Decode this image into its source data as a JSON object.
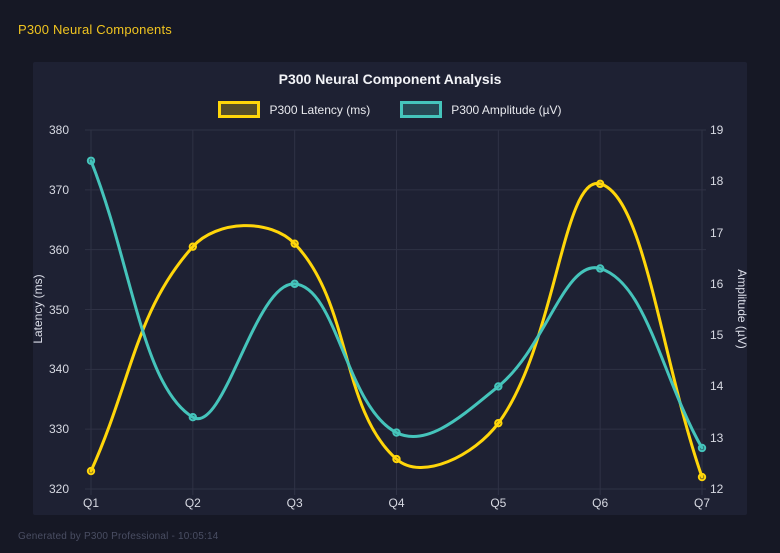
{
  "header": {
    "title": "P300 Neural Components",
    "title_color": "#f0c420"
  },
  "footer": {
    "text": "Generated by P300 Professional - 10:05:14"
  },
  "colors": {
    "page_background": "#161825",
    "panel_background": "#1e2133",
    "grid_line": "#2f3245",
    "latency_series": "#ffd60a",
    "amplitude_series": "#45c4bb",
    "title_text": "#f2f3f7",
    "tick_text": "#d7d9e2"
  },
  "chart_data": {
    "type": "line",
    "title": "P300 Neural Component Analysis",
    "categories": [
      "Q1",
      "Q2",
      "Q3",
      "Q4",
      "Q5",
      "Q6",
      "Q7"
    ],
    "series": [
      {
        "name": "P300 Latency (ms)",
        "axis": "left",
        "color": "#ffd60a",
        "values": [
          323,
          360.5,
          361,
          325,
          331,
          371,
          322
        ]
      },
      {
        "name": "P300 Amplitude (µV)",
        "axis": "right",
        "color": "#45c4bb",
        "values": [
          18.4,
          13.4,
          16.0,
          13.1,
          14.0,
          16.3,
          12.8
        ]
      }
    ],
    "left_axis": {
      "label": "Latency (ms)",
      "min": 320,
      "max": 380,
      "ticks": [
        380,
        370,
        360,
        350,
        340,
        330,
        320
      ]
    },
    "right_axis": {
      "label": "Amplitude (µV)",
      "min": 12,
      "max": 19,
      "ticks": [
        19,
        18,
        17,
        16,
        15,
        14,
        13,
        12
      ]
    },
    "legend_position": "top",
    "grid": true,
    "line_tension": 0.4
  }
}
